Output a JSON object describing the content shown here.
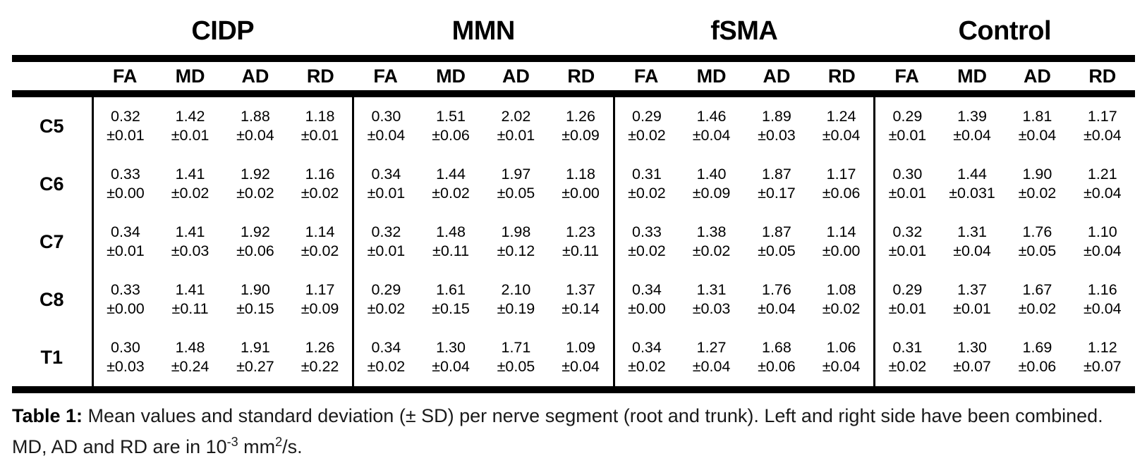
{
  "table": {
    "groups": [
      "CIDP",
      "MMN",
      "fSMA",
      "Control"
    ],
    "metrics": [
      "FA",
      "MD",
      "AD",
      "RD"
    ],
    "rows": [
      {
        "label": "C5",
        "cells": [
          {
            "mean": "0.32",
            "sd": "±0.01"
          },
          {
            "mean": "1.42",
            "sd": "±0.01"
          },
          {
            "mean": "1.88",
            "sd": "±0.04"
          },
          {
            "mean": "1.18",
            "sd": "±0.01"
          },
          {
            "mean": "0.30",
            "sd": "±0.04"
          },
          {
            "mean": "1.51",
            "sd": "±0.06"
          },
          {
            "mean": "2.02",
            "sd": "±0.01"
          },
          {
            "mean": "1.26",
            "sd": "±0.09"
          },
          {
            "mean": "0.29",
            "sd": "±0.02"
          },
          {
            "mean": "1.46",
            "sd": "±0.04"
          },
          {
            "mean": "1.89",
            "sd": "±0.03"
          },
          {
            "mean": "1.24",
            "sd": "±0.04"
          },
          {
            "mean": "0.29",
            "sd": "±0.01"
          },
          {
            "mean": "1.39",
            "sd": "±0.04"
          },
          {
            "mean": "1.81",
            "sd": "±0.04"
          },
          {
            "mean": "1.17",
            "sd": "±0.04"
          }
        ]
      },
      {
        "label": "C6",
        "cells": [
          {
            "mean": "0.33",
            "sd": "±0.00"
          },
          {
            "mean": "1.41",
            "sd": "±0.02"
          },
          {
            "mean": "1.92",
            "sd": "±0.02"
          },
          {
            "mean": "1.16",
            "sd": "±0.02"
          },
          {
            "mean": "0.34",
            "sd": "±0.01"
          },
          {
            "mean": "1.44",
            "sd": "±0.02"
          },
          {
            "mean": "1.97",
            "sd": "±0.05"
          },
          {
            "mean": "1.18",
            "sd": "±0.00"
          },
          {
            "mean": "0.31",
            "sd": "±0.02"
          },
          {
            "mean": "1.40",
            "sd": "±0.09"
          },
          {
            "mean": "1.87",
            "sd": "±0.17"
          },
          {
            "mean": "1.17",
            "sd": "±0.06"
          },
          {
            "mean": "0.30",
            "sd": "±0.01"
          },
          {
            "mean": "1.44",
            "sd": "±0.031"
          },
          {
            "mean": "1.90",
            "sd": "±0.02"
          },
          {
            "mean": "1.21",
            "sd": "±0.04"
          }
        ]
      },
      {
        "label": "C7",
        "cells": [
          {
            "mean": "0.34",
            "sd": "±0.01"
          },
          {
            "mean": "1.41",
            "sd": "±0.03"
          },
          {
            "mean": "1.92",
            "sd": "±0.06"
          },
          {
            "mean": "1.14",
            "sd": "±0.02"
          },
          {
            "mean": "0.32",
            "sd": "±0.01"
          },
          {
            "mean": "1.48",
            "sd": "±0.11"
          },
          {
            "mean": "1.98",
            "sd": "±0.12"
          },
          {
            "mean": "1.23",
            "sd": "±0.11"
          },
          {
            "mean": "0.33",
            "sd": "±0.02"
          },
          {
            "mean": "1.38",
            "sd": "±0.02"
          },
          {
            "mean": "1.87",
            "sd": "±0.05"
          },
          {
            "mean": "1.14",
            "sd": "±0.00"
          },
          {
            "mean": "0.32",
            "sd": "±0.01"
          },
          {
            "mean": "1.31",
            "sd": "±0.04"
          },
          {
            "mean": "1.76",
            "sd": "±0.05"
          },
          {
            "mean": "1.10",
            "sd": "±0.04"
          }
        ]
      },
      {
        "label": "C8",
        "cells": [
          {
            "mean": "0.33",
            "sd": "±0.00"
          },
          {
            "mean": "1.41",
            "sd": "±0.11"
          },
          {
            "mean": "1.90",
            "sd": "±0.15"
          },
          {
            "mean": "1.17",
            "sd": "±0.09"
          },
          {
            "mean": "0.29",
            "sd": "±0.02"
          },
          {
            "mean": "1.61",
            "sd": "±0.15"
          },
          {
            "mean": "2.10",
            "sd": "±0.19"
          },
          {
            "mean": "1.37",
            "sd": "±0.14"
          },
          {
            "mean": "0.34",
            "sd": "±0.00"
          },
          {
            "mean": "1.31",
            "sd": "±0.03"
          },
          {
            "mean": "1.76",
            "sd": "±0.04"
          },
          {
            "mean": "1.08",
            "sd": "±0.02"
          },
          {
            "mean": "0.29",
            "sd": "±0.01"
          },
          {
            "mean": "1.37",
            "sd": "±0.01"
          },
          {
            "mean": "1.67",
            "sd": "±0.02"
          },
          {
            "mean": "1.16",
            "sd": "±0.04"
          }
        ]
      },
      {
        "label": "T1",
        "cells": [
          {
            "mean": "0.30",
            "sd": "±0.03"
          },
          {
            "mean": "1.48",
            "sd": "±0.24"
          },
          {
            "mean": "1.91",
            "sd": "±0.27"
          },
          {
            "mean": "1.26",
            "sd": "±0.22"
          },
          {
            "mean": "0.34",
            "sd": "±0.02"
          },
          {
            "mean": "1.30",
            "sd": "±0.04"
          },
          {
            "mean": "1.71",
            "sd": "±0.05"
          },
          {
            "mean": "1.09",
            "sd": "±0.04"
          },
          {
            "mean": "0.34",
            "sd": "±0.02"
          },
          {
            "mean": "1.27",
            "sd": "±0.04"
          },
          {
            "mean": "1.68",
            "sd": "±0.06"
          },
          {
            "mean": "1.06",
            "sd": "±0.04"
          },
          {
            "mean": "0.31",
            "sd": "±0.02"
          },
          {
            "mean": "1.30",
            "sd": "±0.07"
          },
          {
            "mean": "1.69",
            "sd": "±0.06"
          },
          {
            "mean": "1.12",
            "sd": "±0.07"
          }
        ]
      }
    ]
  },
  "caption": {
    "label": "Table 1:",
    "text1": " Mean values and standard deviation (± SD) per nerve segment (root and trunk). Left and right side have been combined. MD, AD and RD are in 10",
    "sup1": "-3",
    "text2": " mm",
    "sup2": "2",
    "text3": "/s."
  },
  "colors": {
    "text": "#000000",
    "rule": "#000000",
    "background": "#ffffff"
  }
}
